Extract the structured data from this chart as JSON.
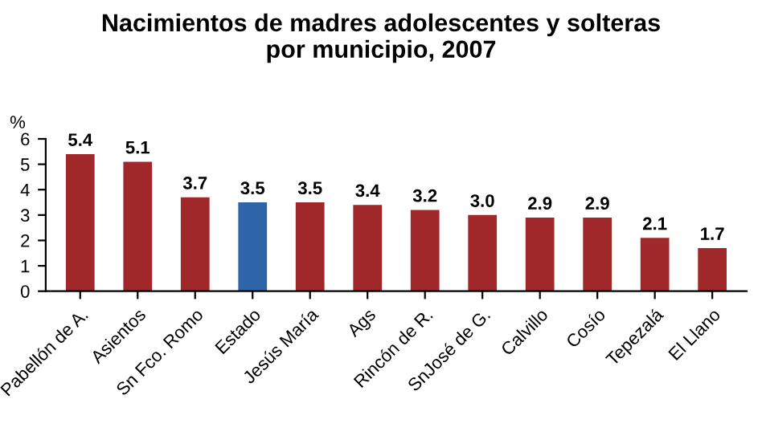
{
  "chart_data": {
    "type": "bar",
    "title": "Nacimientos de madres adolescentes y solteras\npor municipio, 2007",
    "ylabel": "%",
    "categories": [
      "Pabellón de A.",
      "Asientos",
      "Sn Fco. Romo",
      "Estado",
      "Jesús María",
      "Ags",
      "Rincón de R.",
      "SnJosé de G.",
      "Calvillo",
      "Cosío",
      "Tepezalá",
      "El Llano"
    ],
    "values": [
      5.4,
      5.1,
      3.7,
      3.5,
      3.5,
      3.4,
      3.2,
      3.0,
      2.9,
      2.9,
      2.1,
      1.7
    ],
    "colors": [
      "#a0282a",
      "#a0282a",
      "#a0282a",
      "#2e64a8",
      "#a0282a",
      "#a0282a",
      "#a0282a",
      "#a0282a",
      "#a0282a",
      "#a0282a",
      "#a0282a",
      "#a0282a"
    ],
    "value_labels": [
      "5.4",
      "5.1",
      "3.7",
      "3.5",
      "3.5",
      "3.4",
      "3.2",
      "3.0",
      "2.9",
      "2.9",
      "2.1",
      "1.7"
    ],
    "ylim": [
      0,
      6
    ],
    "yticks": [
      0,
      1,
      2,
      3,
      4,
      5,
      6
    ],
    "grid": false,
    "legend": false
  }
}
